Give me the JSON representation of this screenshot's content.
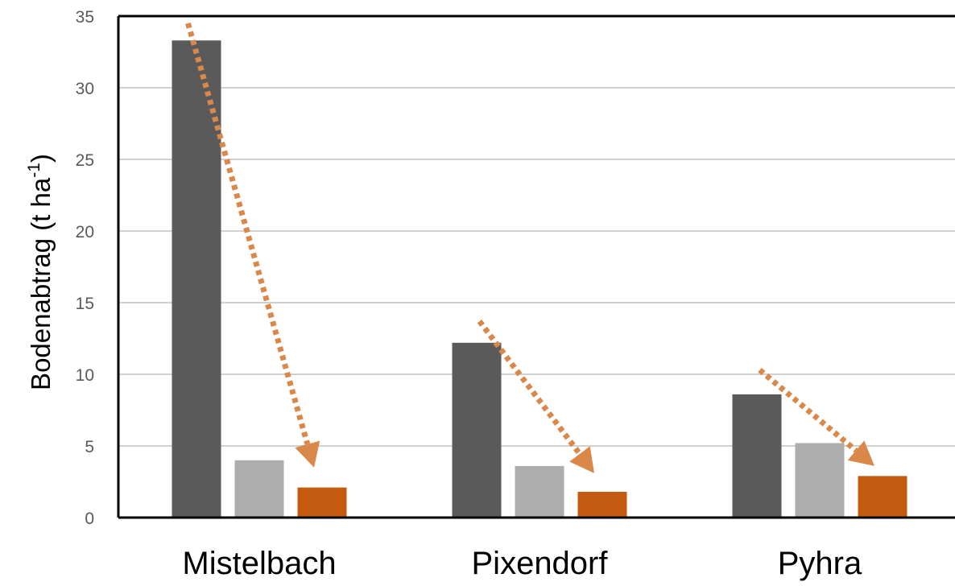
{
  "chart_data": {
    "type": "bar",
    "title": "",
    "xlabel": "",
    "ylabel": {
      "main": "Bodenabtrag (t ha",
      "sup": "-1",
      "close": ")"
    },
    "ylim": [
      0,
      35
    ],
    "yticks": [
      "0",
      "5",
      "10",
      "15",
      "20",
      "25",
      "30",
      "35"
    ],
    "grid": true,
    "legend": "none",
    "categories": [
      "Mistelbach",
      "Pixendorf",
      "Pyhra"
    ],
    "series": [
      {
        "color": "#5a5a5a",
        "values": [
          33.3,
          12.2,
          8.6
        ]
      },
      {
        "color": "#adadad",
        "values": [
          4.0,
          3.6,
          5.2
        ]
      },
      {
        "color": "#c55a11",
        "values": [
          2.1,
          1.8,
          2.9
        ]
      }
    ],
    "annotations": [
      {
        "type": "arrow",
        "category": "Mistelbach",
        "from_value": 34.5,
        "to_value": 3.5,
        "color": "#d9884a",
        "style": "dotted"
      },
      {
        "type": "arrow",
        "category": "Pixendorf",
        "from_value": 13.7,
        "to_value": 3.1,
        "color": "#d9884a",
        "style": "dotted"
      },
      {
        "type": "arrow",
        "category": "Pyhra",
        "from_value": 10.3,
        "to_value": 3.6,
        "color": "#d9884a",
        "style": "dotted"
      }
    ]
  }
}
